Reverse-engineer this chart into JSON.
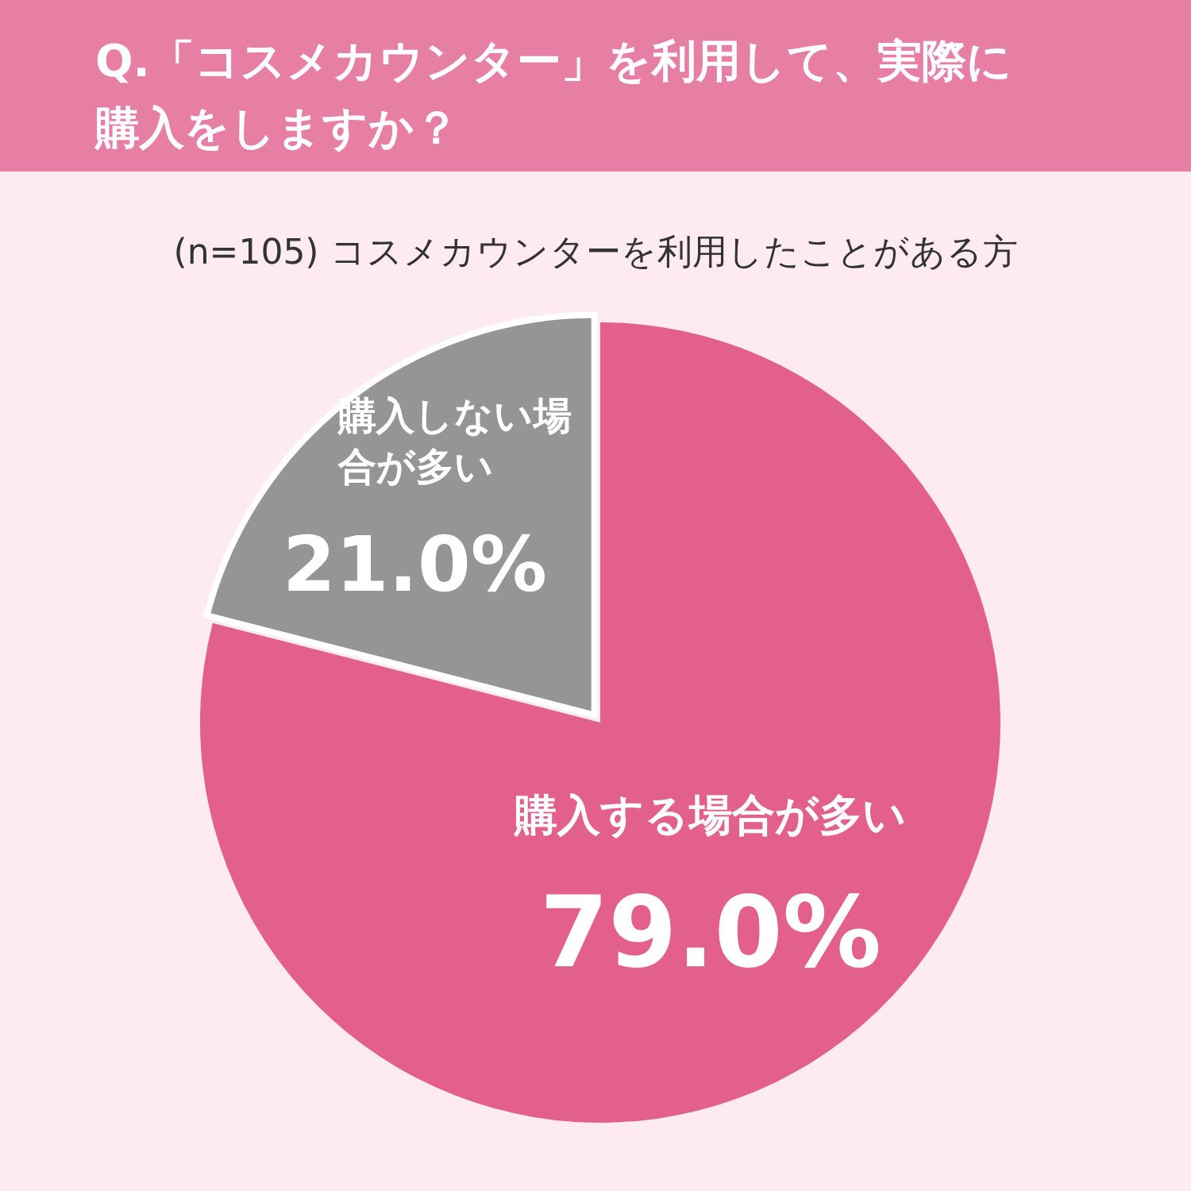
{
  "chart_data": {
    "type": "pie",
    "title": "Q.「コスメカウンター」を利用して、実際に購入をしますか？",
    "subtitle": "(n=105) コスメカウンターを利用したことがある方",
    "categories": [
      "購入する場合が多い",
      "購入しない場合が多い"
    ],
    "values": [
      79.0,
      21.0
    ],
    "colors": [
      "#e2608b",
      "#959595"
    ],
    "value_labels": [
      "79.0%",
      "21.0%"
    ]
  }
}
